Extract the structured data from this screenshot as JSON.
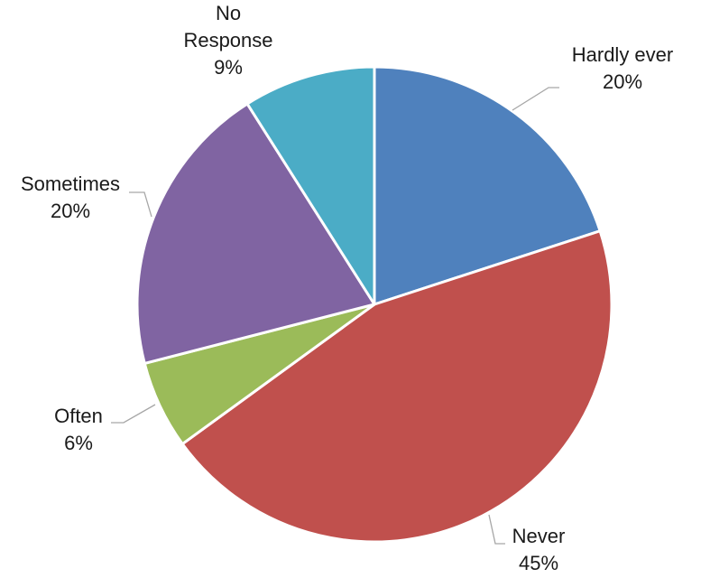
{
  "chart_data": {
    "type": "pie",
    "title": "",
    "start_angle_deg": 0,
    "direction": "clockwise",
    "slices": [
      {
        "name": "Hardly ever",
        "label_lines": [
          "Hardly ever"
        ],
        "value": 20,
        "percent_label": "20%",
        "color": "#4F81BD"
      },
      {
        "name": "Never",
        "label_lines": [
          "Never"
        ],
        "value": 45,
        "percent_label": "45%",
        "color": "#C0504D"
      },
      {
        "name": "Often",
        "label_lines": [
          "Often"
        ],
        "value": 6,
        "percent_label": "6%",
        "color": "#9BBB59"
      },
      {
        "name": "Sometimes",
        "label_lines": [
          "Sometimes"
        ],
        "value": 20,
        "percent_label": "20%",
        "color": "#8064A2"
      },
      {
        "name": "No Response",
        "label_lines": [
          "No",
          "Response"
        ],
        "value": 9,
        "percent_label": "9%",
        "color": "#4BACC6"
      }
    ],
    "legend": "none",
    "data_labels": "outside with leader lines"
  }
}
